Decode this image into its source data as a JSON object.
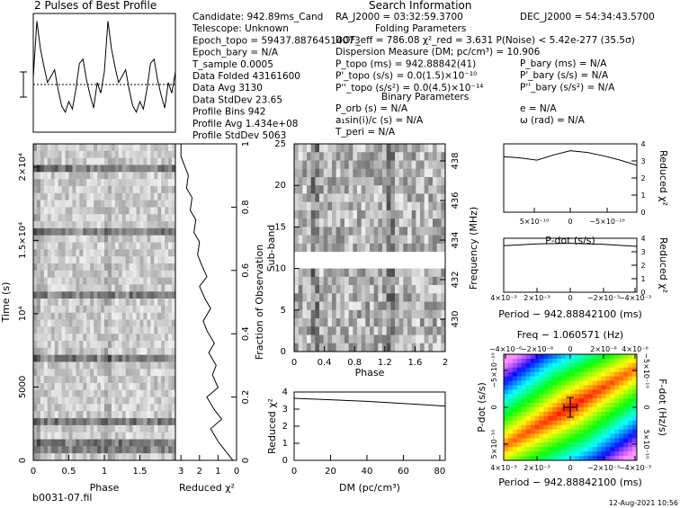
{
  "profile_title": "2 Pulses of Best Profile",
  "search_header": "Search Information",
  "folding_header": "Folding Parameters",
  "binary_header": "Binary Parameters",
  "footer": {
    "file": "b0031-07.fil",
    "date": "12-Aug-2021 10:56"
  },
  "params_left": [
    "Candidate:  942.89ms_Cand",
    "Telescope:  Unknown",
    "Epoch_topo = 59437.88764514073",
    "Epoch_bary = N/A",
    "T_sample    0.0005",
    "Data Folded   43161600",
    "Data Avg      3130",
    "Data StdDev   23.65",
    "Profile Bins   942",
    "Profile Avg    1.434e+08",
    "Profile StdDev   5063"
  ],
  "params_ra": "RA_J2000 = 03:32:59.3700",
  "params_dec": "DEC_J2000 = 54:34:43.5700",
  "params_fold": [
    "DOF_eff = 786.08  χ²_red = 3.631  P(Noise) < 5.42e-277  (35.5σ)",
    "Dispersion Measure (DM; pc/cm³) = 10.906",
    "P_topo (ms)  =  942.88842(41)",
    "P'_topo (s/s) = 0.0(1.5)×10⁻¹⁰",
    "P''_topo (s/s²) = 0.0(4.5)×10⁻¹⁴"
  ],
  "params_bary": [
    "P_bary (ms) = N/A",
    "P'_bary (s/s) = N/A",
    "P''_bary (s/s²) = N/A"
  ],
  "params_binary_left": [
    "P_orb (s) = N/A",
    "a₁sin(i)/c (s) = N/A",
    "T_peri = N/A"
  ],
  "params_binary_right": [
    "e = N/A",
    "ω (rad) = N/A"
  ],
  "chart_data": [
    {
      "type": "line",
      "name": "profile",
      "title": "2 Pulses of Best Profile",
      "x": [
        0,
        0.05,
        0.1,
        0.15,
        0.2,
        0.25,
        0.3,
        0.35,
        0.4,
        0.45,
        0.5,
        0.55,
        0.6,
        0.65,
        0.7,
        0.75,
        0.8,
        0.85,
        0.9,
        0.95,
        1.0,
        1.05,
        1.1,
        1.15,
        1.2,
        1.25,
        1.3,
        1.35,
        1.4,
        1.45,
        1.5,
        1.55,
        1.6,
        1.65,
        1.7,
        1.75,
        1.8,
        1.85,
        1.9,
        1.95,
        2.0
      ],
      "y": [
        0.45,
        0.98,
        0.72,
        0.55,
        0.4,
        0.46,
        0.52,
        0.33,
        0.18,
        0.12,
        0.22,
        0.15,
        0.34,
        0.58,
        0.62,
        0.42,
        0.28,
        0.16,
        0.4,
        0.3,
        0.5,
        0.98,
        0.72,
        0.55,
        0.4,
        0.46,
        0.52,
        0.33,
        0.18,
        0.12,
        0.22,
        0.15,
        0.34,
        0.58,
        0.62,
        0.42,
        0.28,
        0.16,
        0.4,
        0.3,
        0.5
      ],
      "xlim": [
        0,
        2
      ]
    },
    {
      "type": "heatmap",
      "name": "time-phase",
      "xlabel": "Phase",
      "ylabel": "Time (s)",
      "xticks": [
        "0",
        "0.5",
        "1",
        "1.5"
      ],
      "yticks": [
        "0",
        "5000",
        "10⁴",
        "1.5×10⁴",
        "2×10⁴"
      ],
      "xlim": [
        0,
        2
      ],
      "ylim": [
        0,
        21580
      ]
    },
    {
      "type": "line",
      "name": "time-chi2",
      "xlabel": "Reduced χ²",
      "ylabel": "Fraction of Observation",
      "xticks": [
        "3",
        "2",
        "1",
        "0"
      ],
      "yticks": [
        "0",
        "0.2",
        "0.4",
        "0.6",
        "0.8",
        "1"
      ],
      "x": [
        0.2,
        0.6,
        1.0,
        1.4,
        0.8,
        1.2,
        1.6,
        1.0,
        1.3,
        1.1,
        1.5,
        1.2,
        1.6,
        1.8,
        1.4,
        1.7,
        2.0,
        1.6,
        1.9,
        2.1,
        2.0,
        2.3,
        2.2,
        2.5,
        2.4,
        2.7,
        2.6,
        2.8,
        3.0,
        3.0
      ],
      "y": [
        0.0,
        0.03,
        0.06,
        0.1,
        0.13,
        0.16,
        0.2,
        0.23,
        0.27,
        0.3,
        0.34,
        0.37,
        0.41,
        0.44,
        0.48,
        0.51,
        0.55,
        0.58,
        0.62,
        0.65,
        0.69,
        0.72,
        0.76,
        0.79,
        0.83,
        0.86,
        0.9,
        0.93,
        0.96,
        1.0
      ],
      "xlim": [
        3.3,
        0
      ],
      "ylim": [
        0,
        1
      ]
    },
    {
      "type": "heatmap",
      "name": "subband-phase",
      "xlabel": "Phase",
      "ylabel": "Sub-band",
      "y2label": "Frequency (MHz)",
      "xticks": [
        "0",
        "0.4",
        "0.8",
        "1.2",
        "1.6",
        "2"
      ],
      "yticks": [
        "0",
        "5",
        "10",
        "15",
        "20",
        "25"
      ],
      "y2ticks": [
        "430",
        "432",
        "434",
        "436",
        "438"
      ],
      "xlim": [
        0,
        2
      ],
      "ylim": [
        0,
        25
      ]
    },
    {
      "type": "line",
      "name": "dm-chi2",
      "xlabel": "DM (pc/cm³)",
      "ylabel": "Reduced χ²",
      "xticks": [
        "0",
        "20",
        "40",
        "60",
        "80"
      ],
      "yticks": [
        "0",
        "1",
        "2",
        "3",
        "4"
      ],
      "x": [
        0,
        20,
        40,
        60,
        83
      ],
      "y": [
        3.63,
        3.55,
        3.45,
        3.33,
        3.18
      ],
      "xlim": [
        0,
        83
      ],
      "ylim": [
        0,
        4
      ]
    },
    {
      "type": "line",
      "name": "pdot-chi2",
      "xlabel": "P-dot (s/s)",
      "ylabel": "Reduced χ²",
      "xticks": [
        "5×10⁻¹⁰",
        "0",
        "−5×10⁻¹⁰"
      ],
      "yticks": [
        "0",
        "1",
        "2",
        "3",
        "4"
      ],
      "x": [
        -1,
        -0.75,
        -0.5,
        -0.25,
        0,
        0.25,
        0.5,
        0.75,
        1
      ],
      "y": [
        3.25,
        3.18,
        3.05,
        3.35,
        3.6,
        3.5,
        3.3,
        3.05,
        2.75
      ],
      "xlim": [
        -1,
        1
      ],
      "ylim": [
        0,
        4
      ]
    },
    {
      "type": "line",
      "name": "period-chi2",
      "xlabel": "Period − 942.88842100 (ms)",
      "ylabel": "Reduced χ²",
      "xticks": [
        "4×10⁻³",
        "2×10⁻³",
        "0",
        "−2×10⁻³",
        "−4×10⁻³"
      ],
      "yticks": [
        "0",
        "1",
        "2",
        "3",
        "4"
      ],
      "x": [
        -1,
        -0.5,
        0,
        0.5,
        1
      ],
      "y": [
        3.45,
        3.58,
        3.63,
        3.55,
        3.4
      ],
      "xlim": [
        -1,
        1
      ],
      "ylim": [
        0,
        4
      ]
    },
    {
      "type": "heatmap",
      "name": "period-pdot",
      "title": "Freq − 1.060571 (Hz)",
      "xlabel": "Period − 942.88842100 (ms)",
      "ylabel": "P-dot (s/s)",
      "y2label": "F-dot (Hz/s)",
      "xticks": [
        "4×10⁻³",
        "2×10⁻³",
        "0",
        "−2×10⁻³",
        "−4×10⁻³"
      ],
      "x2ticks": [
        "−4×10⁻⁶",
        "−2×10⁻⁶",
        "0",
        "2×10⁻⁶",
        "4×10⁻⁶"
      ],
      "yticks": [
        "5×10⁻¹⁰",
        "0",
        "−5×10⁻¹⁰"
      ],
      "y2ticks": [
        "−5×10⁻¹⁰",
        "0",
        "5×10⁻¹⁰"
      ]
    }
  ]
}
